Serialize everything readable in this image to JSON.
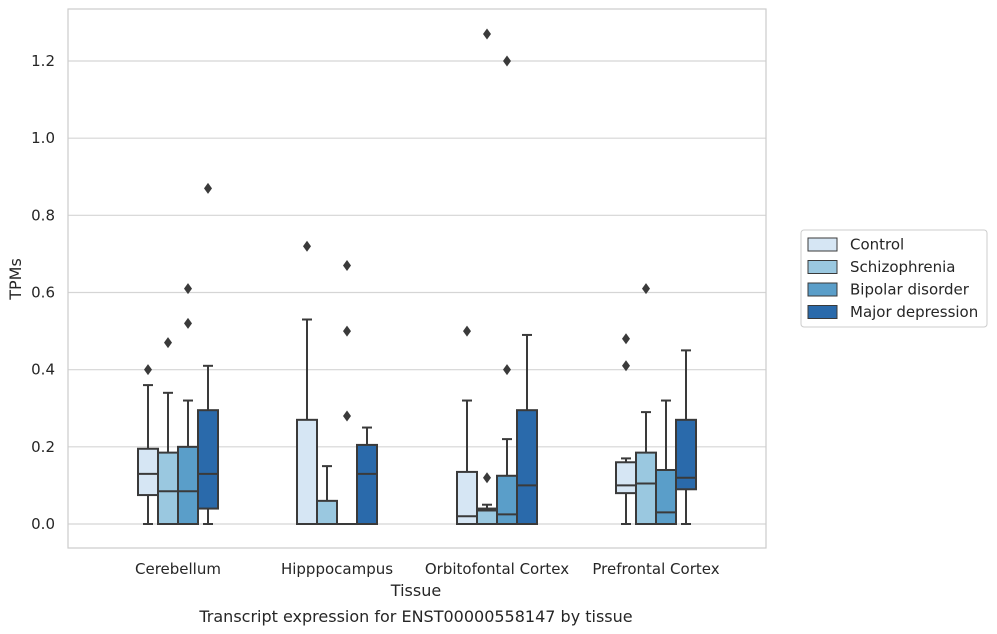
{
  "chart_data": {
    "type": "box",
    "caption": "Transcript expression for ENST00000558147 by tissue",
    "xlabel": "Tissue",
    "ylabel": "TPMs",
    "ylim": [
      -0.06,
      1.34
    ],
    "yticks": [
      0.0,
      0.2,
      0.4,
      0.6,
      0.8,
      1.0,
      1.2
    ],
    "ytick_labels": [
      "0.0",
      "0.2",
      "0.4",
      "0.6",
      "0.8",
      "1.0",
      "1.2"
    ],
    "grid": "horizontal",
    "legend_position": "right",
    "categories": [
      "Cerebellum",
      "Hipppocampus",
      "Orbitofontal Cortex",
      "Prefrontal Cortex"
    ],
    "series": [
      {
        "name": "Control",
        "color": "#d6e6f4",
        "boxes": [
          {
            "whislo": 0.0,
            "q1": 0.075,
            "med": 0.13,
            "q3": 0.195,
            "whishi": 0.36,
            "fliers": [
              0.4
            ]
          },
          {
            "whislo": 0.0,
            "q1": 0.0,
            "med": 0.0,
            "q3": 0.27,
            "whishi": 0.53,
            "fliers": [
              0.72
            ]
          },
          {
            "whislo": 0.0,
            "q1": 0.0,
            "med": 0.02,
            "q3": 0.135,
            "whishi": 0.32,
            "fliers": [
              0.5
            ]
          },
          {
            "whislo": 0.0,
            "q1": 0.08,
            "med": 0.1,
            "q3": 0.16,
            "whishi": 0.17,
            "fliers": [
              0.41,
              0.48
            ]
          }
        ]
      },
      {
        "name": "Schizophrenia",
        "color": "#9ac8e0",
        "boxes": [
          {
            "whislo": 0.0,
            "q1": 0.0,
            "med": 0.085,
            "q3": 0.185,
            "whishi": 0.34,
            "fliers": [
              0.47
            ]
          },
          {
            "whislo": 0.0,
            "q1": 0.0,
            "med": 0.0,
            "q3": 0.06,
            "whishi": 0.15,
            "fliers": []
          },
          {
            "whislo": 0.0,
            "q1": 0.0,
            "med": 0.035,
            "q3": 0.04,
            "whishi": 0.05,
            "fliers": [
              0.12,
              1.27
            ]
          },
          {
            "whislo": 0.0,
            "q1": 0.0,
            "med": 0.105,
            "q3": 0.185,
            "whishi": 0.29,
            "fliers": [
              0.61
            ]
          }
        ]
      },
      {
        "name": "Bipolar disorder",
        "color": "#5a9ec9",
        "boxes": [
          {
            "whislo": 0.0,
            "q1": 0.0,
            "med": 0.085,
            "q3": 0.2,
            "whishi": 0.32,
            "fliers": [
              0.52,
              0.61
            ]
          },
          {
            "whislo": 0.0,
            "q1": 0.0,
            "med": 0.0,
            "q3": 0.0,
            "whishi": 0.0,
            "fliers": [
              0.28,
              0.5,
              0.67
            ]
          },
          {
            "whislo": 0.0,
            "q1": 0.0,
            "med": 0.025,
            "q3": 0.125,
            "whishi": 0.22,
            "fliers": [
              0.4,
              1.2
            ]
          },
          {
            "whislo": 0.0,
            "q1": 0.0,
            "med": 0.03,
            "q3": 0.14,
            "whishi": 0.32,
            "fliers": []
          }
        ]
      },
      {
        "name": "Major depression",
        "color": "#2a6aab",
        "boxes": [
          {
            "whislo": 0.0,
            "q1": 0.04,
            "med": 0.13,
            "q3": 0.295,
            "whishi": 0.41,
            "fliers": [
              0.87
            ]
          },
          {
            "whislo": 0.0,
            "q1": 0.0,
            "med": 0.13,
            "q3": 0.205,
            "whishi": 0.25,
            "fliers": []
          },
          {
            "whislo": 0.0,
            "q1": 0.0,
            "med": 0.1,
            "q3": 0.295,
            "whishi": 0.49,
            "fliers": []
          },
          {
            "whislo": 0.0,
            "q1": 0.09,
            "med": 0.12,
            "q3": 0.27,
            "whishi": 0.45,
            "fliers": []
          }
        ]
      }
    ]
  }
}
